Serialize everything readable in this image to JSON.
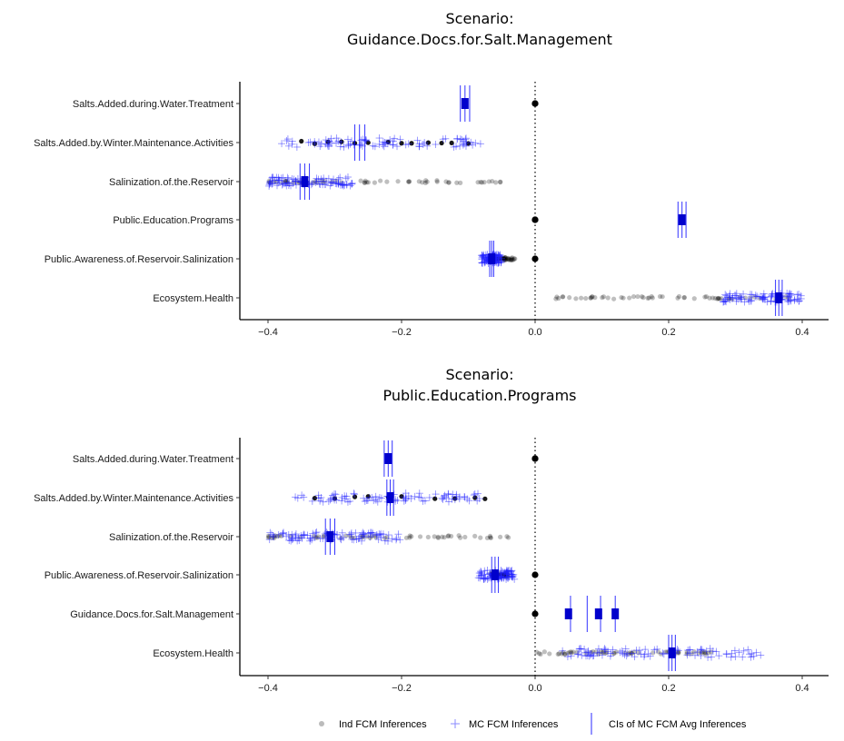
{
  "legend": {
    "ind_label": "Ind FCM Inferences",
    "mc_label": "MC FCM Inferences",
    "ci_label": "CIs of MC FCM Avg Inferences"
  },
  "colors": {
    "ind_point": "#000000",
    "mc_point": "#1f1fff",
    "ci": "#0000ff",
    "avg_box": "#0000cc"
  },
  "chart_data": [
    {
      "type": "scatter",
      "title_line1": "Scenario:",
      "title_line2": "Guidance.Docs.for.Salt.Management",
      "x_ticks": [
        -0.4,
        -0.2,
        0.0,
        0.2,
        0.4
      ],
      "x_tick_labels": [
        "−0.4",
        "−0.2",
        "0.0",
        "0.2",
        "0.4"
      ],
      "xlim": [
        -0.44,
        0.44
      ],
      "zero_line": 0.0,
      "categories": [
        {
          "label": "Salts.Added.during.Water.Treatment",
          "ind": [
            0.0,
            0.0
          ],
          "mc_range": [
            -0.107,
            -0.103
          ],
          "ci": [
            -0.112,
            -0.098
          ],
          "avg": -0.105
        },
        {
          "label": "Salts.Added.by.Winter.Maintenance.Activities",
          "ind": [
            -0.35,
            -0.33,
            -0.31,
            -0.29,
            -0.27,
            -0.25,
            -0.22,
            -0.2,
            -0.185,
            -0.16,
            -0.14,
            -0.125,
            -0.1
          ],
          "mc_range": [
            -0.38,
            -0.08
          ],
          "ci": [
            -0.27,
            -0.255
          ],
          "avg": -0.263
        },
        {
          "label": "Salinization.of.the.Reservoir",
          "ind_range": [
            -0.4,
            -0.05
          ],
          "mc_range": [
            -0.4,
            -0.27
          ],
          "ci": [
            -0.352,
            -0.338
          ],
          "avg": -0.345
        },
        {
          "label": "Public.Education.Programs",
          "ind": [
            0.0,
            0.0
          ],
          "mc_range": [
            0.218,
            0.222
          ],
          "ci": [
            0.214,
            0.226
          ],
          "avg": 0.22
        },
        {
          "label": "Public.Awareness.of.Reservoir.Salinization",
          "ind_range": [
            -0.07,
            -0.03
          ],
          "mc_range": [
            -0.08,
            -0.05
          ],
          "ci": [
            -0.068,
            -0.062
          ],
          "avg": -0.065,
          "ind_extra": [
            0.0
          ]
        },
        {
          "label": "Ecosystem.Health",
          "ind_range": [
            0.03,
            0.39
          ],
          "mc_range": [
            0.28,
            0.4
          ],
          "ci": [
            0.36,
            0.37
          ],
          "avg": 0.365
        }
      ]
    },
    {
      "type": "scatter",
      "title_line1": "Scenario:",
      "title_line2": "Public.Education.Programs",
      "x_ticks": [
        -0.4,
        -0.2,
        0.0,
        0.2,
        0.4
      ],
      "x_tick_labels": [
        "−0.4",
        "−0.2",
        "0.0",
        "0.2",
        "0.4"
      ],
      "xlim": [
        -0.44,
        0.44
      ],
      "zero_line": 0.0,
      "categories": [
        {
          "label": "Salts.Added.during.Water.Treatment",
          "ind": [
            0.0,
            0.0
          ],
          "mc_range": [
            -0.222,
            -0.218
          ],
          "ci": [
            -0.226,
            -0.214
          ],
          "avg": -0.22
        },
        {
          "label": "Salts.Added.by.Winter.Maintenance.Activities",
          "ind": [
            -0.33,
            -0.3,
            -0.27,
            -0.25,
            -0.22,
            -0.2,
            -0.15,
            -0.12,
            -0.09,
            -0.075
          ],
          "mc_range": [
            -0.36,
            -0.08
          ],
          "ci": [
            -0.222,
            -0.212
          ],
          "avg": -0.217
        },
        {
          "label": "Salinization.of.the.Reservoir",
          "ind_range": [
            -0.4,
            -0.04
          ],
          "mc_range": [
            -0.4,
            -0.2
          ],
          "ci": [
            -0.314,
            -0.3
          ],
          "avg": -0.307
        },
        {
          "label": "Public.Awareness.of.Reservoir.Salinization",
          "ind_range": [
            -0.07,
            -0.04
          ],
          "mc_range": [
            -0.085,
            -0.03
          ],
          "ci": [
            -0.065,
            -0.055
          ],
          "avg": -0.06,
          "ind_extra": [
            0.0
          ]
        },
        {
          "label": "Guidance.Docs.for.Salt.Management",
          "ind": [
            0.0
          ],
          "mc_range": [
            0.0,
            0.0
          ],
          "boxes": [
            0.05,
            0.095,
            0.12
          ],
          "ci_lines": [
            0.053,
            0.078,
            0.098,
            0.12
          ],
          "avg": 0.078
        },
        {
          "label": "Ecosystem.Health",
          "ind_range": [
            0.0,
            0.28
          ],
          "mc_range": [
            0.04,
            0.34
          ],
          "ci": [
            0.2,
            0.21
          ],
          "avg": 0.205
        }
      ]
    }
  ]
}
